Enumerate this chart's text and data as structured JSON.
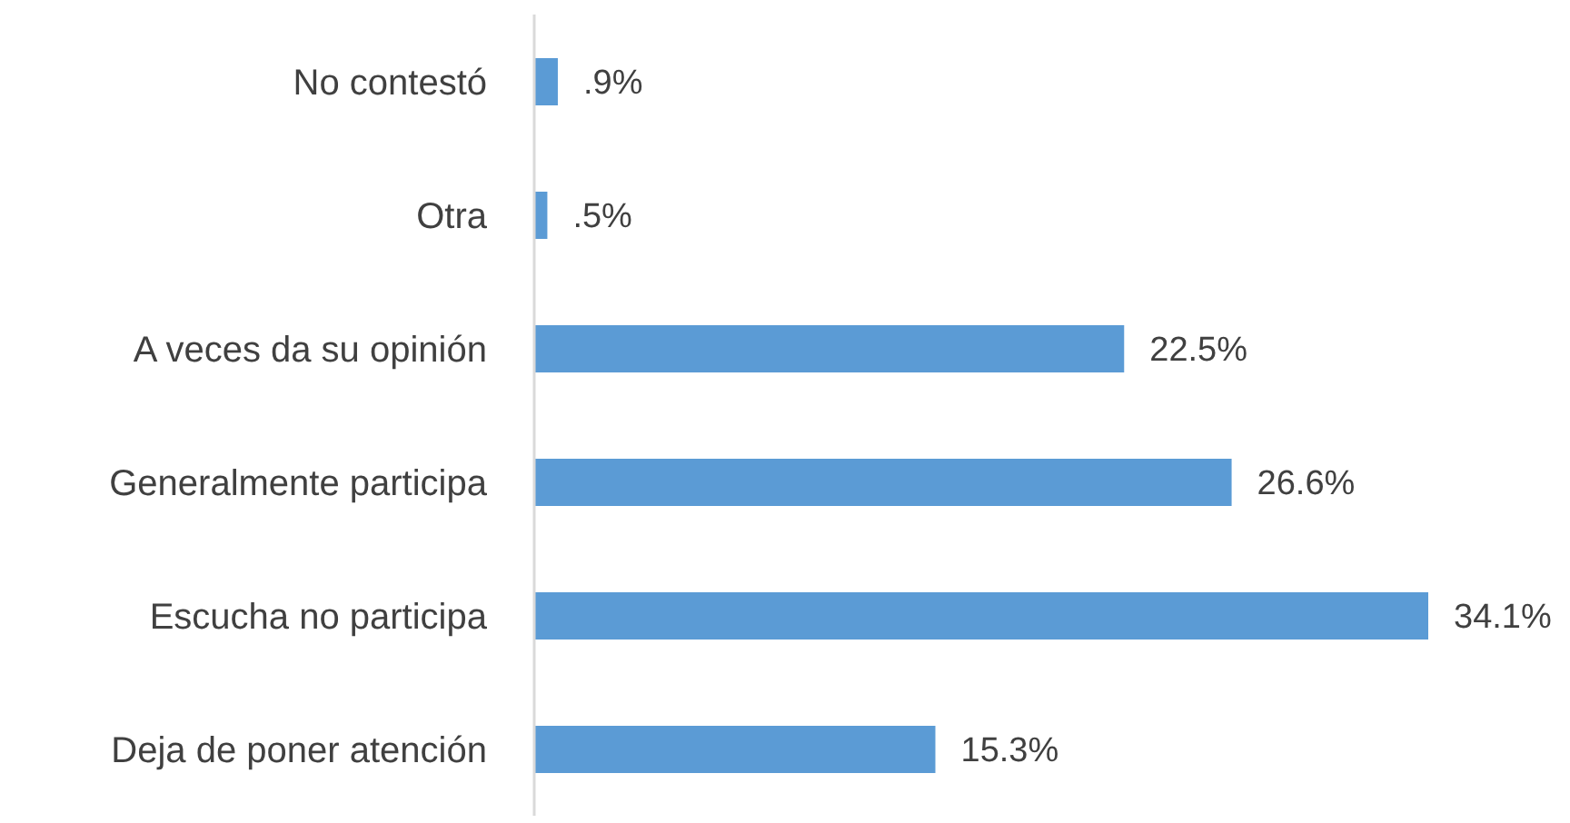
{
  "chart_data": {
    "type": "bar",
    "orientation": "horizontal",
    "categories": [
      "No contestó",
      "Otra",
      "A veces da su opinión",
      "Generalmente participa",
      "Escucha no participa",
      "Deja de poner atención"
    ],
    "values": [
      0.9,
      0.5,
      22.5,
      26.6,
      34.1,
      15.3
    ],
    "value_labels": [
      ".9%",
      ".5%",
      "22.5%",
      "26.6%",
      "34.1%",
      "15.3%"
    ],
    "color": "#5b9bd5"
  }
}
